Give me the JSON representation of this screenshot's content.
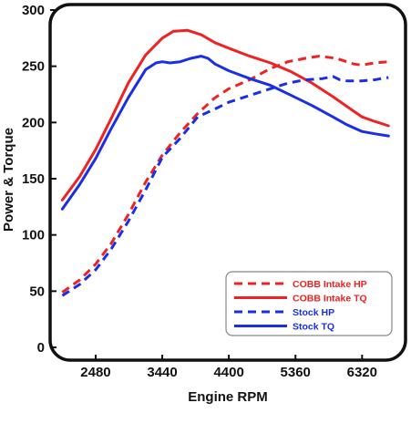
{
  "chart_data": {
    "type": "line",
    "xlabel": "Engine RPM",
    "ylabel": "Power & Torque",
    "xlim": [
      1850,
      6920
    ],
    "ylim": [
      0,
      300
    ],
    "x_ticks": [
      2480,
      3440,
      4400,
      5360,
      6320
    ],
    "y_ticks": [
      0,
      50,
      100,
      150,
      200,
      250,
      300
    ],
    "grid": false,
    "legend_position": "bottom-right",
    "colors": {
      "cobb": "#ee2222",
      "stock": "#1a2ee8",
      "frame": "#111111"
    },
    "series": [
      {
        "name": "COBB Intake HP",
        "color": "#ee2222",
        "dash": true,
        "x": [
          2000,
          2250,
          2480,
          2700,
          2950,
          3200,
          3440,
          3700,
          3950,
          4200,
          4400,
          4700,
          5000,
          5250,
          5500,
          5700,
          5950,
          6200,
          6320,
          6500,
          6700
        ],
        "y": [
          49,
          60,
          74,
          92,
          118,
          147,
          171,
          191,
          208,
          222,
          230,
          238,
          248,
          254,
          257,
          259,
          257,
          252,
          251,
          253,
          254
        ]
      },
      {
        "name": "COBB Intake TQ",
        "color": "#ee2222",
        "dash": false,
        "x": [
          2000,
          2250,
          2480,
          2700,
          2950,
          3200,
          3440,
          3600,
          3800,
          4000,
          4200,
          4400,
          4700,
          5000,
          5300,
          5600,
          5900,
          6200,
          6320,
          6500,
          6700
        ],
        "y": [
          131,
          152,
          176,
          203,
          235,
          260,
          275,
          281,
          282,
          278,
          271,
          266,
          259,
          253,
          245,
          235,
          223,
          210,
          205,
          201,
          197
        ]
      },
      {
        "name": "Stock HP",
        "color": "#1a2ee8",
        "dash": true,
        "x": [
          2000,
          2250,
          2480,
          2700,
          2950,
          3200,
          3440,
          3700,
          3950,
          4200,
          4400,
          4700,
          5000,
          5250,
          5500,
          5750,
          5900,
          6000,
          6100,
          6320,
          6500,
          6700
        ],
        "y": [
          46,
          56,
          69,
          87,
          112,
          140,
          169,
          186,
          205,
          212,
          218,
          224,
          230,
          235,
          238,
          239,
          241,
          238,
          237,
          237,
          238,
          240
        ]
      },
      {
        "name": "Stock TQ",
        "color": "#1a2ee8",
        "dash": false,
        "x": [
          2000,
          2250,
          2480,
          2700,
          2950,
          3200,
          3350,
          3440,
          3550,
          3700,
          3850,
          4000,
          4100,
          4200,
          4400,
          4700,
          5000,
          5300,
          5600,
          5900,
          6100,
          6320,
          6500,
          6700
        ],
        "y": [
          123,
          145,
          168,
          194,
          222,
          247,
          253,
          254,
          253,
          254,
          257,
          259,
          257,
          252,
          246,
          239,
          233,
          224,
          215,
          205,
          198,
          192,
          190,
          188
        ]
      }
    ]
  }
}
